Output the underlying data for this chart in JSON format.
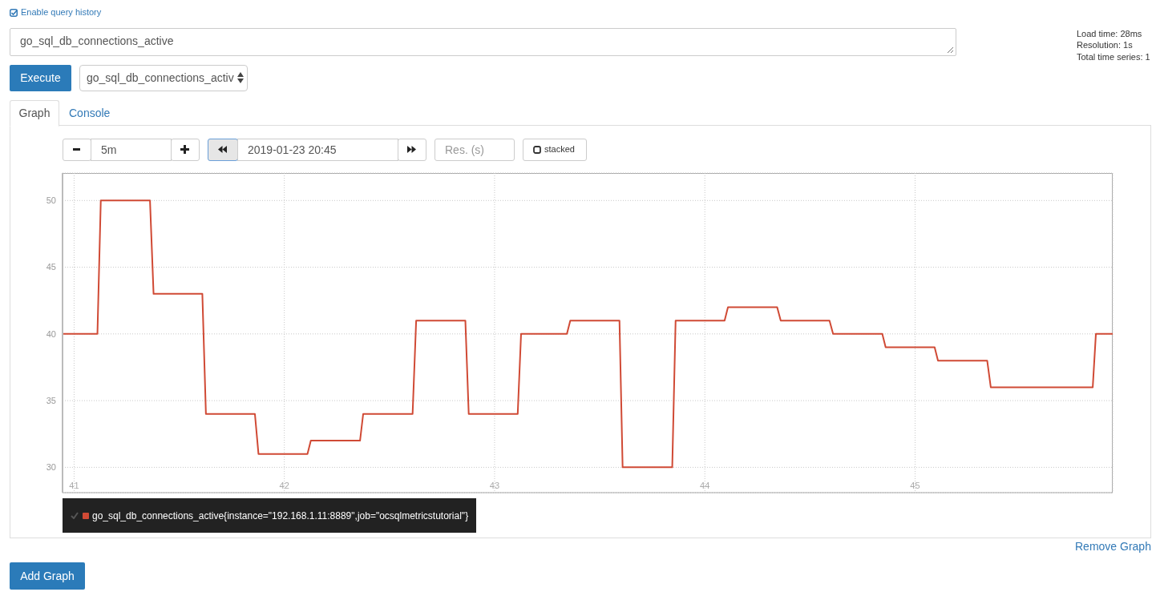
{
  "chart_data": {
    "type": "line",
    "x": [
      40.945,
      41.111,
      41.127,
      41.361,
      41.378,
      41.61,
      41.627,
      41.86,
      41.877,
      42.11,
      42.126,
      42.36,
      42.375,
      42.61,
      42.627,
      42.861,
      42.877,
      43.11,
      43.126,
      43.344,
      43.36,
      43.594,
      43.609,
      43.845,
      43.861,
      44.094,
      44.11,
      44.344,
      44.361,
      44.593,
      44.61,
      44.844,
      44.86,
      45.093,
      45.109,
      45.343,
      45.36,
      45.845,
      45.86,
      45.938
    ],
    "series": [
      {
        "name": "go_sql_db_connections_active{instance=\"192.168.1.11:8889\",job=\"ocsqlmetricstutorial\"}",
        "color": "#d04a35",
        "values": [
          40,
          40,
          50,
          50,
          43,
          43,
          34,
          34,
          31,
          31,
          32,
          32,
          34,
          34,
          41,
          41,
          34,
          34,
          40,
          40,
          41,
          41,
          30,
          30,
          41,
          41,
          42,
          42,
          41,
          41,
          40,
          40,
          39,
          39,
          38,
          38,
          36,
          36,
          40,
          40
        ]
      }
    ],
    "xlim": [
      40.945,
      45.94
    ],
    "xticks": [
      41,
      42,
      43,
      44,
      45
    ],
    "ylim": [
      28.1,
      52.06
    ],
    "yticks": [
      30,
      35,
      40,
      45,
      50
    ],
    "grid": true,
    "legend": "bottom left",
    "annotations": [
      "Enable query history",
      "go_sql_db_connections_active",
      "Execute",
      "go_sql_db_connections_activ",
      "Load time: 28ms",
      "Resolution: 1s",
      "Total time series: 1",
      "Graph",
      "Console",
      "5m",
      "2019-01-23 20:45",
      "Res. (s)",
      "stacked",
      "Remove Graph",
      "Add Graph"
    ]
  }
}
